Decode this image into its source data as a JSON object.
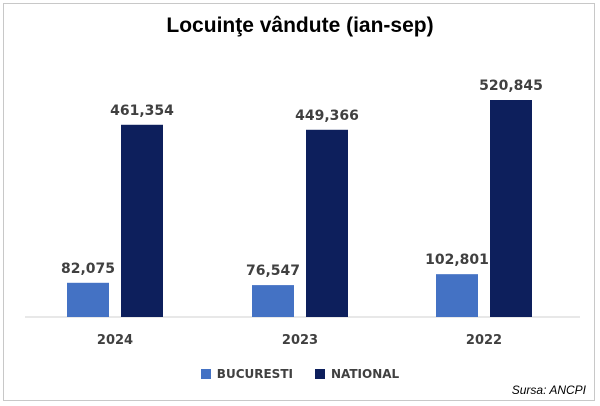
{
  "chart_data": {
    "type": "bar",
    "title": "Locuinţe vândute (ian-sep)",
    "categories": [
      "2024",
      "2023",
      "2022"
    ],
    "series": [
      {
        "name": "BUCURESTI",
        "values": [
          82075,
          76547,
          102801
        ],
        "labels": [
          "82,075",
          "76,547",
          "102,801"
        ],
        "color": "#4472c4"
      },
      {
        "name": "NATIONAL",
        "values": [
          461354,
          449366,
          520845
        ],
        "labels": [
          "461,354",
          "449,366",
          "520,845"
        ],
        "color": "#0d1f5c"
      }
    ],
    "ylim": [
      0,
      560000
    ],
    "grid": false,
    "legend_position": "bottom"
  },
  "source": "Sursa: ANCPI"
}
